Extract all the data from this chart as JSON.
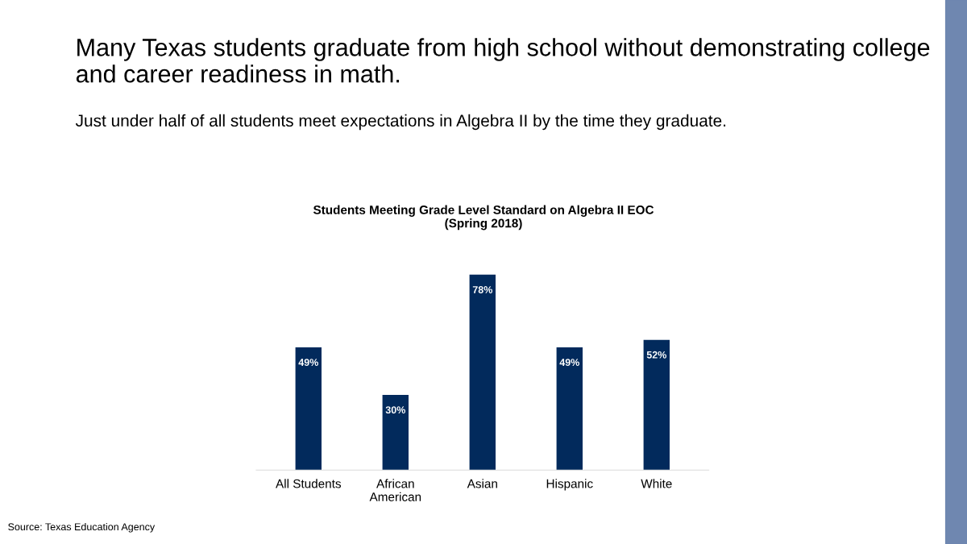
{
  "chart_data": {
    "type": "bar",
    "title": "Many Texas students graduate from high school without demonstrating college and career readiness in math.",
    "subtitle": "Just under half of all students meet expectations in Algebra II by the time they graduate.",
    "annotations": [
      "Students Meeting Grade Level Standard on Algebra II EOC\n(Spring 2018)",
      "Source: Texas Education Agency"
    ],
    "categories": [
      "All Students",
      "African\nAmerican",
      "Asian",
      "Hispanic",
      "White"
    ],
    "values": [
      49,
      30,
      78,
      49,
      52
    ],
    "value_labels": [
      "49%",
      "30%",
      "78%",
      "49%",
      "52%"
    ],
    "color": "#022a5c",
    "tick_labels": "x",
    "grid": false,
    "legend": false
  }
}
